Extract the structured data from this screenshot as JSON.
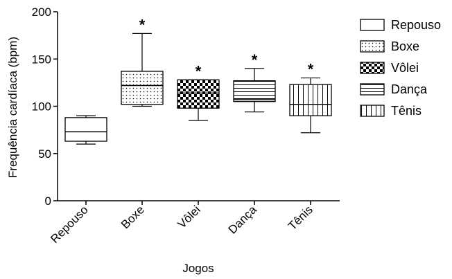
{
  "chart_data": {
    "type": "box",
    "xlabel": "Jogos",
    "ylabel": "Frequência cardíaca (bpm)",
    "ylim": [
      0,
      200
    ],
    "yticks": [
      0,
      50,
      100,
      150,
      200
    ],
    "grid": false,
    "legend_position": "right",
    "categories": [
      "Repouso",
      "Boxe",
      "Vôlei",
      "Dança",
      "Tênis"
    ],
    "series": [
      {
        "name": "Repouso",
        "pattern": "blank",
        "whisker_min": 60,
        "q1": 63,
        "median": 73,
        "q3": 88,
        "whisker_max": 90,
        "marker": ""
      },
      {
        "name": "Boxe",
        "pattern": "dots",
        "whisker_min": 100,
        "q1": 102,
        "median": 122,
        "q3": 137,
        "whisker_max": 177,
        "marker": "*"
      },
      {
        "name": "Vôlei",
        "pattern": "checker",
        "whisker_min": 85,
        "q1": 98,
        "median": 114,
        "q3": 128,
        "whisker_max": 128,
        "marker": "*"
      },
      {
        "name": "Dança",
        "pattern": "horizontal-lines",
        "whisker_min": 94,
        "q1": 105,
        "median": 107,
        "q3": 127,
        "whisker_max": 140,
        "marker": "*"
      },
      {
        "name": "Tênis",
        "pattern": "vertical-lines",
        "whisker_min": 72,
        "q1": 90,
        "median": 102,
        "q3": 123,
        "whisker_max": 130,
        "marker": "*"
      }
    ]
  }
}
